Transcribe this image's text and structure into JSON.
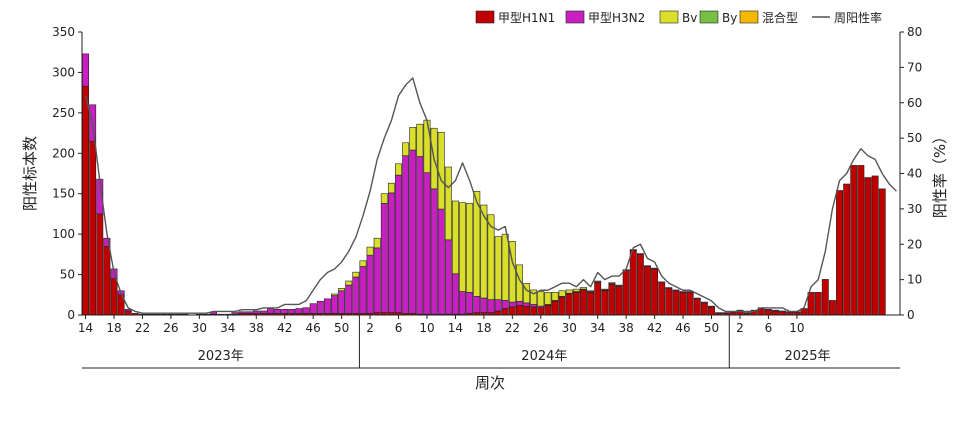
{
  "chart_data": {
    "type": "bar",
    "stacked": true,
    "title": "",
    "xlabel": "周次",
    "ylabel": "阳性标本数",
    "y2label": "阳性率（%）",
    "ylim": [
      0,
      350
    ],
    "y2lim": [
      0,
      80
    ],
    "yticks": [
      0,
      50,
      100,
      150,
      200,
      250,
      300,
      350
    ],
    "y2ticks": [
      0,
      10,
      20,
      30,
      40,
      50,
      60,
      70,
      80
    ],
    "grid": false,
    "legend_position": "top-right",
    "x_tick_labels": [
      "14",
      "18",
      "22",
      "26",
      "30",
      "34",
      "38",
      "42",
      "46",
      "50",
      "2",
      "6",
      "10",
      "14",
      "18",
      "22",
      "26",
      "30",
      "34",
      "38",
      "42",
      "46",
      "50",
      "2",
      "6",
      "10"
    ],
    "years": [
      {
        "label": "2023年",
        "weeks": "14-52"
      },
      {
        "label": "2024年",
        "weeks": "1-52"
      },
      {
        "label": "2025年",
        "weeks": "1-9"
      }
    ],
    "series": [
      {
        "name": "甲型H1N1",
        "color": "#c00000",
        "values": [
          283,
          215,
          125,
          85,
          45,
          25,
          5,
          2,
          1,
          1,
          1,
          1,
          1,
          1,
          1,
          0,
          1,
          1,
          1,
          1,
          1,
          1,
          2,
          2,
          2,
          2,
          2,
          2,
          2,
          2,
          2,
          2,
          2,
          2,
          2,
          2,
          2,
          2,
          2,
          2,
          2,
          3,
          3,
          3,
          3,
          2,
          2,
          1,
          1,
          1,
          1,
          1,
          1,
          1,
          2,
          3,
          3,
          3,
          5,
          8,
          10,
          12,
          11,
          10,
          9,
          12,
          17,
          22,
          26,
          28,
          31,
          28,
          40,
          30,
          38,
          35,
          55,
          80,
          75,
          60,
          57,
          40,
          33,
          30,
          28,
          28,
          20,
          15,
          10,
          2,
          2,
          3,
          5,
          2,
          5,
          8,
          6,
          5,
          4,
          3,
          3,
          8,
          28,
          28,
          44,
          18,
          154,
          162,
          185,
          185,
          170,
          172,
          156
        ]
      },
      {
        "name": "甲型H3N2",
        "color": "#c71fc0",
        "values": [
          40,
          45,
          43,
          10,
          12,
          5,
          2,
          0,
          0,
          0,
          0,
          0,
          0,
          0,
          0,
          0,
          0,
          0,
          3,
          0,
          0,
          2,
          2,
          2,
          3,
          3,
          6,
          5,
          5,
          5,
          6,
          7,
          12,
          15,
          18,
          22,
          28,
          35,
          45,
          58,
          72,
          80,
          135,
          148,
          170,
          195,
          202,
          195,
          175,
          155,
          130,
          92,
          50,
          28,
          26,
          20,
          18,
          16,
          14,
          10,
          6,
          5,
          4,
          3,
          2,
          1,
          1,
          1,
          1,
          1,
          1,
          1,
          1,
          1,
          1,
          1,
          1,
          1,
          1,
          1,
          1,
          1,
          1,
          1,
          1,
          1,
          1,
          1,
          1,
          1,
          1,
          1,
          1,
          1,
          1,
          1,
          1,
          1,
          1,
          1,
          1,
          0,
          0,
          0,
          0,
          0,
          0,
          0,
          0,
          0,
          0,
          0,
          0
        ]
      },
      {
        "name": "Bv",
        "color": "#d9df2a",
        "values": [
          0,
          0,
          0,
          0,
          0,
          0,
          0,
          0,
          0,
          0,
          0,
          0,
          0,
          0,
          0,
          0,
          0,
          0,
          0,
          0,
          0,
          0,
          0,
          0,
          0,
          0,
          0,
          0,
          0,
          0,
          0,
          0,
          0,
          0,
          0,
          2,
          3,
          5,
          6,
          7,
          10,
          12,
          12,
          12,
          14,
          16,
          28,
          40,
          65,
          75,
          95,
          90,
          90,
          110,
          110,
          130,
          115,
          105,
          78,
          82,
          75,
          45,
          24,
          18,
          18,
          15,
          10,
          7,
          4,
          3,
          2,
          1,
          1,
          1,
          1,
          1,
          0,
          0,
          0,
          0,
          0,
          0,
          0,
          0,
          0,
          0,
          0,
          0,
          0,
          0,
          0,
          0,
          0,
          0,
          0,
          0,
          0,
          0,
          0,
          0,
          0,
          0,
          0,
          0,
          0,
          0,
          0,
          0,
          0,
          0,
          0,
          0,
          0
        ]
      },
      {
        "name": "By",
        "color": "#77c044",
        "values": []
      },
      {
        "name": "混合型",
        "color": "#f5b800",
        "values": []
      },
      {
        "name": "周阳性率",
        "color": "#555555",
        "axis": "right",
        "values": [
          62,
          54,
          38,
          23,
          12,
          6,
          2,
          1,
          0.5,
          0.5,
          0.5,
          0.5,
          0.5,
          0.5,
          0.5,
          0.5,
          0.5,
          0.5,
          1,
          1,
          1,
          1,
          1.5,
          1.5,
          1.5,
          2,
          2,
          2,
          3,
          3,
          3,
          4,
          7,
          10,
          12,
          13,
          15,
          18,
          22,
          28,
          35,
          44,
          50,
          55,
          62,
          65,
          67,
          60,
          55,
          44,
          38,
          36,
          38,
          43,
          38,
          32,
          28,
          25,
          24,
          25,
          15,
          10,
          7,
          6,
          7,
          7,
          8,
          9,
          9,
          8,
          10,
          8,
          12,
          10,
          11,
          11,
          13,
          19,
          20,
          16,
          15,
          11,
          9,
          8,
          7,
          7,
          6,
          5,
          4,
          2,
          1,
          1,
          1,
          1,
          1,
          2,
          2,
          2,
          2,
          1,
          1,
          2,
          8,
          10,
          18,
          30,
          38,
          40,
          44,
          47,
          45,
          44,
          40,
          37,
          35
        ]
      }
    ]
  }
}
